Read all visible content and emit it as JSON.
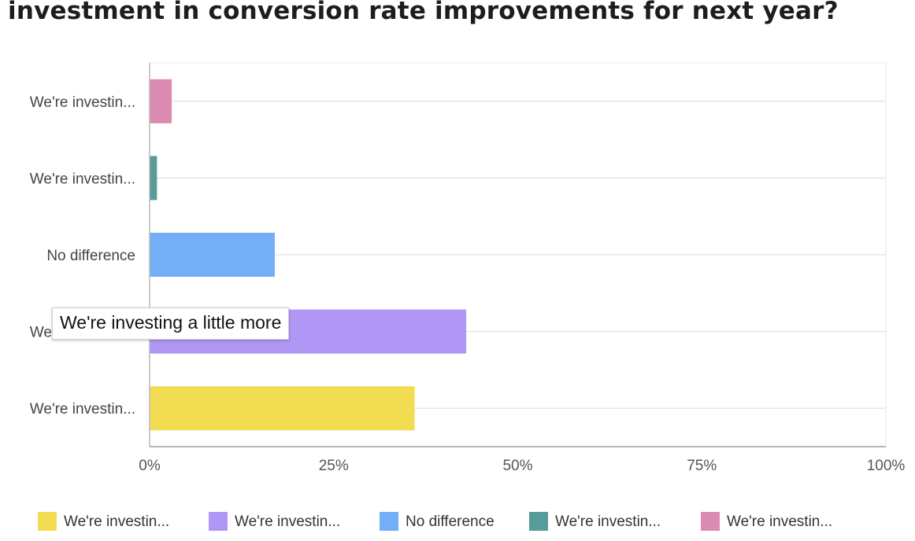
{
  "title": "investment in conversion rate improvements for next year?",
  "tooltip": "We're investing a little more",
  "chart_data": {
    "type": "bar",
    "orientation": "horizontal",
    "title": "investment in conversion rate improvements for next year?",
    "categories": [
      "We're investin...",
      "We're investin...",
      "No difference",
      "We're investin...",
      "We're investin..."
    ],
    "values": [
      3,
      1,
      17,
      43,
      36
    ],
    "colors": [
      "#db8ab0",
      "#579b9b",
      "#74aef7",
      "#b197f5",
      "#f2dc51"
    ],
    "xticks": [
      "0%",
      "25%",
      "50%",
      "75%",
      "100%"
    ],
    "xlim": [
      0,
      100
    ],
    "grid": true,
    "legend_position": "bottom",
    "legend": [
      {
        "label": "We're investin...",
        "color": "#f2dc51"
      },
      {
        "label": "We're investin...",
        "color": "#b197f5"
      },
      {
        "label": "No difference",
        "color": "#74aef7"
      },
      {
        "label": "We're investin...",
        "color": "#579b9b"
      },
      {
        "label": "We're investin...",
        "color": "#db8ab0"
      }
    ]
  }
}
